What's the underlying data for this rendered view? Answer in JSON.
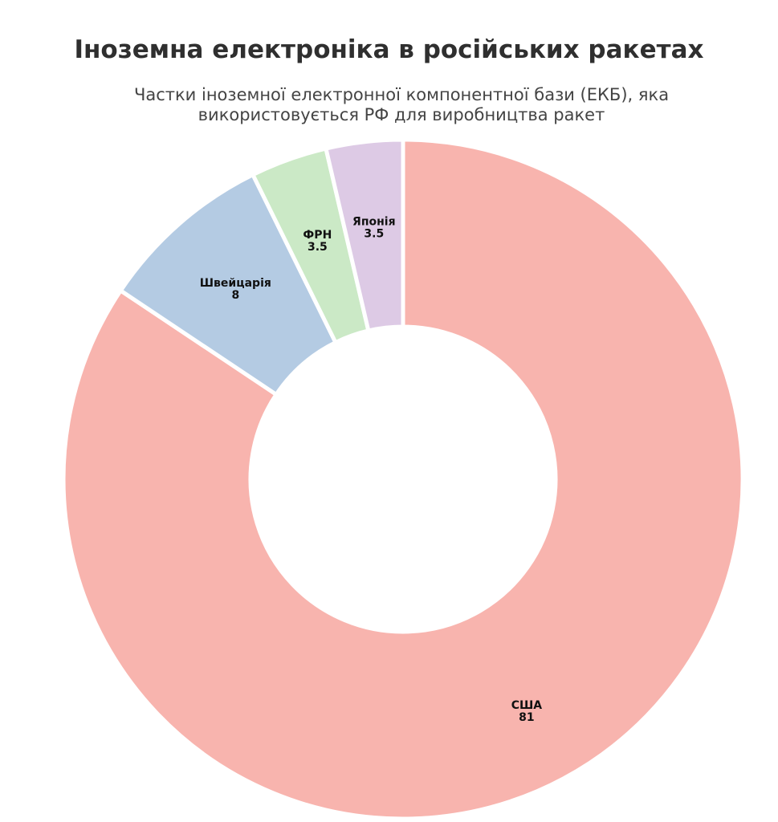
{
  "chart_data": {
    "type": "pie",
    "title": "Іноземна електроніка в російських ракетах",
    "subtitle": "Частки іноземної електронної компонентної бази (ЕКБ), яка використовується РФ для виробництва ракет",
    "donut": true,
    "legend": "none",
    "slices": [
      {
        "label": "США",
        "value": 81,
        "value_text": "81",
        "color": "#f8b4ae"
      },
      {
        "label": "Швейцарія",
        "value": 8,
        "value_text": "8",
        "color": "#b4cbe3"
      },
      {
        "label": "ФРН",
        "value": 3.5,
        "value_text": "3.5",
        "color": "#cbe9c6"
      },
      {
        "label": "Японія",
        "value": 3.5,
        "value_text": "3.5",
        "color": "#ddcae5"
      }
    ]
  }
}
